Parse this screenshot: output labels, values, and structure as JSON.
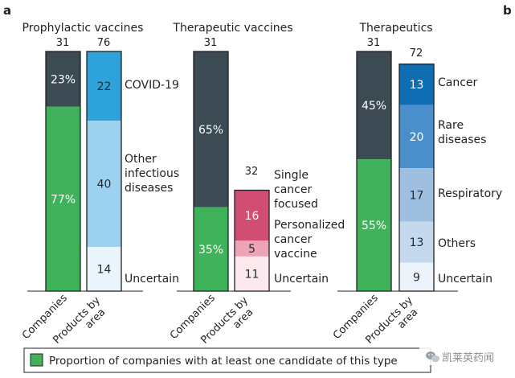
{
  "panel_letters": [
    "a",
    "b"
  ],
  "legend_text": "Proportion of companies with at least one candidate of this type",
  "watermark_text": "凯莱英药闻",
  "chart_data": [
    {
      "type": "bar",
      "stacked": true,
      "title": "Prophylactic vaccines",
      "categories": [
        "Companies",
        "Products by area"
      ],
      "bars": [
        {
          "category": "Companies",
          "total": 31,
          "segments": [
            {
              "label": "23%",
              "value": 23,
              "color": "#3c4a54",
              "text_color": "#ffffff"
            },
            {
              "label": "77%",
              "value": 77,
              "color": "#40b25c",
              "text_color": "#ffffff"
            }
          ]
        },
        {
          "category": "Products by area",
          "total": 76,
          "segments": [
            {
              "label": "22",
              "value": 22,
              "name": "COVID-19",
              "color": "#2ea2db",
              "text_color": "#1a2a36"
            },
            {
              "label": "40",
              "value": 40,
              "name": "Other infectious diseases",
              "color": "#9dd2ee",
              "text_color": "#1a2a36"
            },
            {
              "label": "14",
              "value": 14,
              "name": "Uncertain",
              "color": "#eaf4fb",
              "text_color": "#1a2a36"
            }
          ]
        }
      ],
      "annotations": [
        "COVID-19",
        "Other infectious diseases",
        "Uncertain"
      ]
    },
    {
      "type": "bar",
      "stacked": true,
      "title": "Therapeutic vaccines",
      "categories": [
        "Companies",
        "Products by area"
      ],
      "bars": [
        {
          "category": "Companies",
          "total": 31,
          "segments": [
            {
              "label": "65%",
              "value": 65,
              "color": "#3c4a54",
              "text_color": "#ffffff"
            },
            {
              "label": "35%",
              "value": 35,
              "color": "#40b25c",
              "text_color": "#ffffff"
            }
          ]
        },
        {
          "category": "Products by area",
          "total": 32,
          "segments": [
            {
              "label": "16",
              "value": 16,
              "name": "Single cancer focused",
              "color": "#d24d72",
              "text_color": "#ffffff"
            },
            {
              "label": "5",
              "value": 5,
              "name": "Personalized cancer vaccine",
              "color": "#eea3b7",
              "text_color": "#1a2a36"
            },
            {
              "label": "11",
              "value": 11,
              "name": "Uncertain",
              "color": "#fbe9ee",
              "text_color": "#1a2a36"
            }
          ]
        }
      ],
      "annotations": [
        "Single cancer focused",
        "Personalized cancer vaccine",
        "Uncertain"
      ]
    },
    {
      "type": "bar",
      "stacked": true,
      "title": "Therapeutics",
      "categories": [
        "Companies",
        "Products by area"
      ],
      "bars": [
        {
          "category": "Companies",
          "total": 31,
          "segments": [
            {
              "label": "45%",
              "value": 45,
              "color": "#3c4a54",
              "text_color": "#ffffff"
            },
            {
              "label": "55%",
              "value": 55,
              "color": "#40b25c",
              "text_color": "#ffffff"
            }
          ]
        },
        {
          "category": "Products by area",
          "total": 72,
          "segments": [
            {
              "label": "13",
              "value": 13,
              "name": "Cancer",
              "color": "#0f6db3",
              "text_color": "#ffffff"
            },
            {
              "label": "20",
              "value": 20,
              "name": "Rare diseases",
              "color": "#4a8fcb",
              "text_color": "#ffffff"
            },
            {
              "label": "17",
              "value": 17,
              "name": "Respiratory",
              "color": "#9fbfe0",
              "text_color": "#1a2a36"
            },
            {
              "label": "13",
              "value": 13,
              "name": "Others",
              "color": "#c4d9ee",
              "text_color": "#1a2a36"
            },
            {
              "label": "9",
              "value": 9,
              "name": "Uncertain",
              "color": "#edf3fa",
              "text_color": "#1a2a36"
            }
          ]
        }
      ],
      "annotations": [
        "Cancer",
        "Rare diseases",
        "Respiratory",
        "Others",
        "Uncertain"
      ]
    }
  ]
}
